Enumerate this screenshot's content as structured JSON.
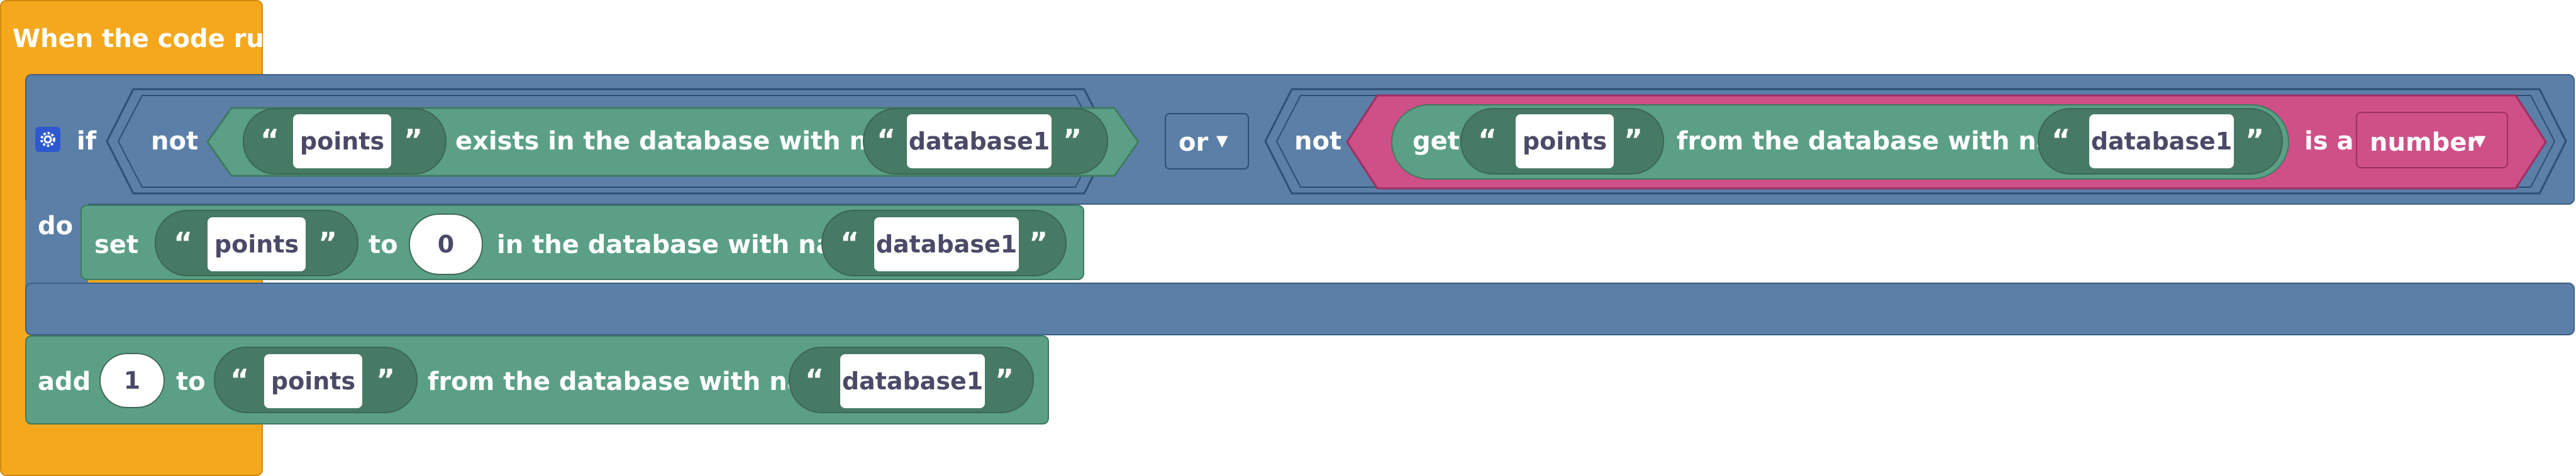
{
  "event": {
    "label": "When the code runs"
  },
  "if_block": {
    "if_label": "if",
    "do_label": "do",
    "left_condition": {
      "not_label": "not",
      "exists": {
        "key": "points",
        "text": "exists in the database with name",
        "database": "database1"
      }
    },
    "operator": {
      "label": "or",
      "options_visible": [
        "or"
      ]
    },
    "right_condition": {
      "not_label": "not",
      "is_a": {
        "get_label": "get",
        "key": "points",
        "text": "from the database with name",
        "database": "database1",
        "is_a_label": "is a",
        "type": "number"
      }
    }
  },
  "set_block": {
    "label": "set",
    "key": "points",
    "to_label": "to",
    "value": "0",
    "text": "in the database with name",
    "database": "database1"
  },
  "add_block": {
    "label": "add",
    "value": "1",
    "to_label": "to",
    "key": "points",
    "text": "from the database with name",
    "database": "database1"
  },
  "glyphs": {
    "open_quote": "“",
    "close_quote": "”",
    "dropdown": "▼"
  },
  "icons": [
    "gear-icon",
    "dropdown-arrow-icon"
  ],
  "colors": {
    "event": "#f5a81c",
    "control": "#5b7fa7",
    "data": "#5ba086",
    "logic": "#cf4f87",
    "text": "#ffffff",
    "field_text": "#4a4a68"
  }
}
